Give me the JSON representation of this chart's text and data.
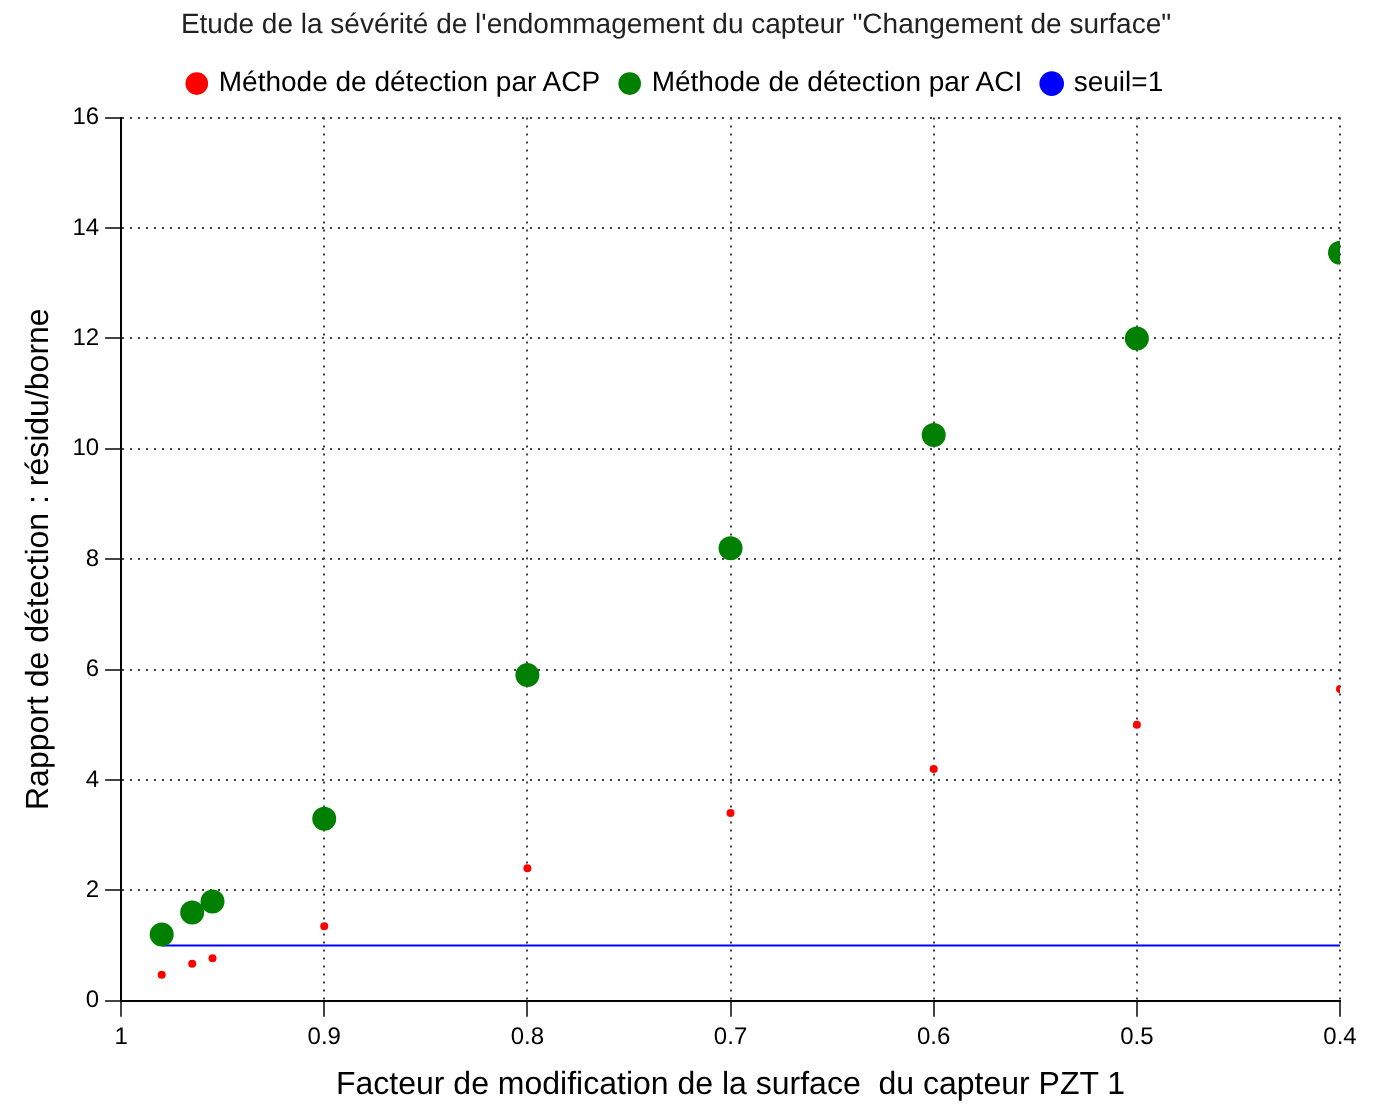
{
  "chart_data": {
    "type": "scatter",
    "title": "Etude de la sévérité de l'endommagement du capteur \"Changement de surface\"",
    "xlabel": "Facteur de modification de la surface  du capteur PZT 1",
    "ylabel": "Rapport de détection : résidu/borne",
    "xlim": [
      1,
      0.4
    ],
    "xticks": [
      1,
      0.9,
      0.8,
      0.7,
      0.6,
      0.5,
      0.4
    ],
    "ylim": [
      0,
      16
    ],
    "yticks": [
      0,
      2,
      4,
      6,
      8,
      10,
      12,
      14,
      16
    ],
    "grid": true,
    "legend": "top",
    "series": [
      {
        "name": "Méthode de détection par ACP",
        "type": "scatter",
        "marker": "circle",
        "color": "#ff0000",
        "x": [
          0.98,
          0.965,
          0.955,
          0.9,
          0.8,
          0.7,
          0.6,
          0.5,
          0.4
        ],
        "values": [
          0.47,
          0.67,
          0.77,
          1.35,
          2.4,
          3.4,
          4.2,
          5.0,
          5.65
        ]
      },
      {
        "name": "Méthode de détection par ACI",
        "type": "scatter",
        "marker": "circle",
        "color": "#008000",
        "x": [
          0.98,
          0.965,
          0.955,
          0.9,
          0.8,
          0.7,
          0.6,
          0.5,
          0.4
        ],
        "values": [
          1.2,
          1.6,
          1.8,
          3.3,
          5.9,
          8.2,
          10.25,
          12.0,
          13.55
        ]
      },
      {
        "name": "seuil=1",
        "type": "line",
        "marker": "none",
        "color": "#0000ff",
        "x": [
          0.98,
          0.4
        ],
        "values": [
          1,
          1
        ]
      }
    ]
  }
}
